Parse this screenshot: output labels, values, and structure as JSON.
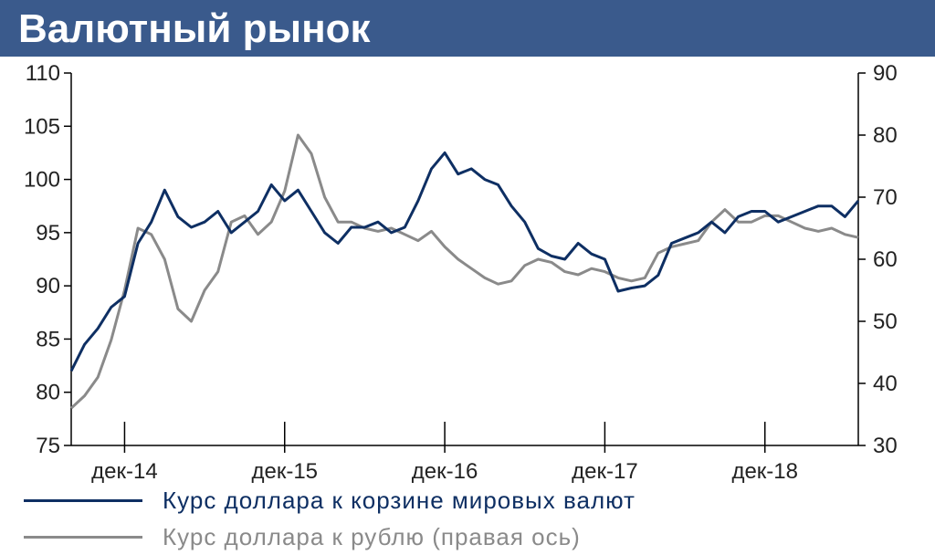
{
  "header": {
    "title": "Валютный рынок"
  },
  "colors": {
    "header_bg": "#3a5a8c",
    "series_dxy": "#0e2f63",
    "series_rub": "#8a8a8a",
    "axis": "#000000"
  },
  "chart_data": {
    "type": "line",
    "title": "",
    "x_ticks": [
      "дек-14",
      "дек-15",
      "дек-16",
      "дек-17",
      "дек-18"
    ],
    "x_tick_dates": [
      "2014-12",
      "2015-12",
      "2016-12",
      "2017-12",
      "2018-12"
    ],
    "xlim": [
      "2014-08",
      "2019-07"
    ],
    "left_axis": {
      "ylim": [
        75,
        110
      ],
      "ticks": [
        75,
        80,
        85,
        90,
        95,
        100,
        105,
        110
      ]
    },
    "right_axis": {
      "ylim": [
        30,
        90
      ],
      "ticks": [
        30,
        40,
        50,
        60,
        70,
        80,
        90
      ]
    },
    "grid": false,
    "legend_position": "bottom",
    "series": [
      {
        "name": "Курс доллара к корзине мировых валют",
        "axis": "left",
        "points": [
          [
            "2014-08",
            82
          ],
          [
            "2014-09",
            84.5
          ],
          [
            "2014-10",
            86
          ],
          [
            "2014-11",
            88
          ],
          [
            "2014-12",
            89
          ],
          [
            "2015-01",
            94
          ],
          [
            "2015-02",
            96
          ],
          [
            "2015-03",
            99
          ],
          [
            "2015-04",
            96.5
          ],
          [
            "2015-05",
            95.5
          ],
          [
            "2015-06",
            96
          ],
          [
            "2015-07",
            97
          ],
          [
            "2015-08",
            95
          ],
          [
            "2015-09",
            96
          ],
          [
            "2015-10",
            97
          ],
          [
            "2015-11",
            99.5
          ],
          [
            "2015-12",
            98
          ],
          [
            "2016-01",
            99
          ],
          [
            "2016-02",
            97
          ],
          [
            "2016-03",
            95
          ],
          [
            "2016-04",
            94
          ],
          [
            "2016-05",
            95.5
          ],
          [
            "2016-06",
            95.5
          ],
          [
            "2016-07",
            96
          ],
          [
            "2016-08",
            95
          ],
          [
            "2016-09",
            95.5
          ],
          [
            "2016-10",
            98
          ],
          [
            "2016-11",
            101
          ],
          [
            "2016-12",
            102.5
          ],
          [
            "2017-01",
            100.5
          ],
          [
            "2017-02",
            101
          ],
          [
            "2017-03",
            100
          ],
          [
            "2017-04",
            99.5
          ],
          [
            "2017-05",
            97.5
          ],
          [
            "2017-06",
            96
          ],
          [
            "2017-07",
            93.5
          ],
          [
            "2017-08",
            92.8
          ],
          [
            "2017-09",
            92.5
          ],
          [
            "2017-10",
            94
          ],
          [
            "2017-11",
            93
          ],
          [
            "2017-12",
            92.5
          ],
          [
            "2018-01",
            89.5
          ],
          [
            "2018-02",
            89.8
          ],
          [
            "2018-03",
            90
          ],
          [
            "2018-04",
            91
          ],
          [
            "2018-05",
            94
          ],
          [
            "2018-06",
            94.5
          ],
          [
            "2018-07",
            95
          ],
          [
            "2018-08",
            96
          ],
          [
            "2018-09",
            95
          ],
          [
            "2018-10",
            96.5
          ],
          [
            "2018-11",
            97
          ],
          [
            "2018-12",
            97
          ],
          [
            "2019-01",
            96
          ],
          [
            "2019-02",
            96.5
          ],
          [
            "2019-03",
            97
          ],
          [
            "2019-04",
            97.5
          ],
          [
            "2019-05",
            97.5
          ],
          [
            "2019-06",
            96.5
          ],
          [
            "2019-07",
            98
          ]
        ]
      },
      {
        "name": "Курс доллара к рублю (правая ось)",
        "axis": "right",
        "points": [
          [
            "2014-08",
            36
          ],
          [
            "2014-09",
            38
          ],
          [
            "2014-10",
            41
          ],
          [
            "2014-11",
            47
          ],
          [
            "2014-12",
            55
          ],
          [
            "2015-01",
            65
          ],
          [
            "2015-02",
            64
          ],
          [
            "2015-03",
            60
          ],
          [
            "2015-04",
            52
          ],
          [
            "2015-05",
            50
          ],
          [
            "2015-06",
            55
          ],
          [
            "2015-07",
            58
          ],
          [
            "2015-08",
            66
          ],
          [
            "2015-09",
            67
          ],
          [
            "2015-10",
            64
          ],
          [
            "2015-11",
            66
          ],
          [
            "2015-12",
            71
          ],
          [
            "2016-01",
            80
          ],
          [
            "2016-02",
            77
          ],
          [
            "2016-03",
            70
          ],
          [
            "2016-04",
            66
          ],
          [
            "2016-05",
            66
          ],
          [
            "2016-06",
            65
          ],
          [
            "2016-07",
            64.5
          ],
          [
            "2016-08",
            65
          ],
          [
            "2016-09",
            64
          ],
          [
            "2016-10",
            63
          ],
          [
            "2016-11",
            64.5
          ],
          [
            "2016-12",
            62
          ],
          [
            "2017-01",
            60
          ],
          [
            "2017-02",
            58.5
          ],
          [
            "2017-03",
            57
          ],
          [
            "2017-04",
            56
          ],
          [
            "2017-05",
            56.5
          ],
          [
            "2017-06",
            59
          ],
          [
            "2017-07",
            60
          ],
          [
            "2017-08",
            59.5
          ],
          [
            "2017-09",
            58
          ],
          [
            "2017-10",
            57.5
          ],
          [
            "2017-11",
            58.5
          ],
          [
            "2017-12",
            58
          ],
          [
            "2018-01",
            57
          ],
          [
            "2018-02",
            56.5
          ],
          [
            "2018-03",
            57
          ],
          [
            "2018-04",
            61
          ],
          [
            "2018-05",
            62
          ],
          [
            "2018-06",
            62.5
          ],
          [
            "2018-07",
            63
          ],
          [
            "2018-08",
            66
          ],
          [
            "2018-09",
            68
          ],
          [
            "2018-10",
            66
          ],
          [
            "2018-11",
            66
          ],
          [
            "2018-12",
            67
          ],
          [
            "2019-01",
            67
          ],
          [
            "2019-02",
            66
          ],
          [
            "2019-03",
            65
          ],
          [
            "2019-04",
            64.5
          ],
          [
            "2019-05",
            65
          ],
          [
            "2019-06",
            64
          ],
          [
            "2019-07",
            63.5
          ]
        ]
      }
    ]
  }
}
